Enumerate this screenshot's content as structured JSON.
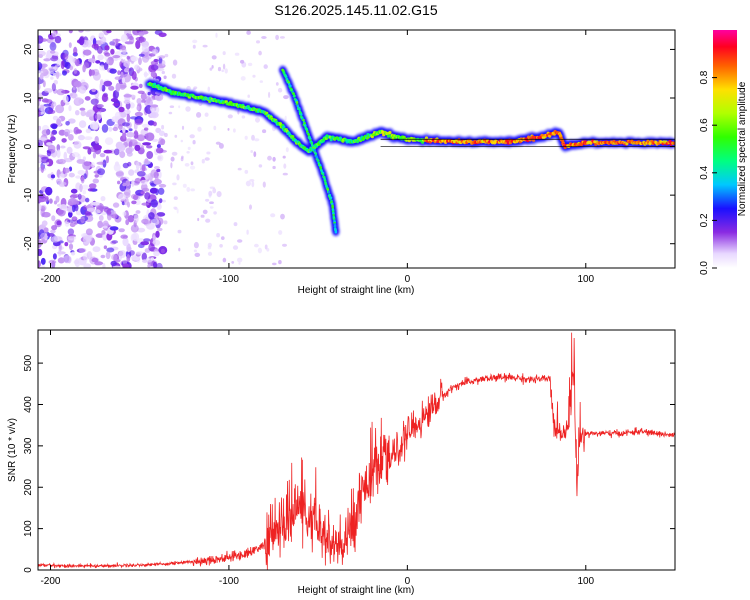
{
  "title": "S126.2025.145.11.02.G15",
  "chart_data": [
    {
      "type": "heatmap",
      "xlabel": "Height of straight line (km)",
      "ylabel": "Frequency (Hz)",
      "xlim": [
        -207,
        150
      ],
      "ylim": [
        -25,
        24
      ],
      "xticks": [
        -200,
        -100,
        0,
        100
      ],
      "yticks": [
        -20,
        -10,
        0,
        10,
        20
      ],
      "colorbar": {
        "label": "Normalized spectral amplitude",
        "range": [
          0,
          1
        ],
        "ticks": [
          0.0,
          0.2,
          0.4,
          0.6,
          0.8
        ]
      },
      "ridge": [
        [
          -145,
          13
        ],
        [
          -130,
          11
        ],
        [
          -115,
          10
        ],
        [
          -100,
          9
        ],
        [
          -90,
          8
        ],
        [
          -80,
          7
        ],
        [
          -70,
          4
        ],
        [
          -62,
          1
        ],
        [
          -55,
          -1
        ],
        [
          -45,
          2
        ],
        [
          -30,
          1
        ],
        [
          -15,
          3
        ],
        [
          0,
          1.5
        ],
        [
          30,
          1
        ],
        [
          60,
          1
        ],
        [
          75,
          2
        ],
        [
          85,
          3
        ],
        [
          88,
          0
        ],
        [
          100,
          0.8
        ],
        [
          150,
          0.8
        ]
      ],
      "secondary_ridge": [
        [
          -70,
          16
        ],
        [
          -63,
          10
        ],
        [
          -55,
          2
        ],
        [
          -47,
          -6
        ],
        [
          -42,
          -12
        ],
        [
          -40,
          -18
        ]
      ]
    },
    {
      "type": "line",
      "xlabel": "Height of straight line (km)",
      "ylabel": "SNR (10 * v/v)",
      "xlim": [
        -207,
        150
      ],
      "ylim": [
        0,
        580
      ],
      "xticks": [
        -200,
        -100,
        0,
        100
      ],
      "yticks": [
        0,
        100,
        200,
        300,
        400,
        500
      ],
      "series": [
        {
          "color": "#ee2222",
          "x": [
            -207,
            -190,
            -170,
            -150,
            -135,
            -120,
            -110,
            -100,
            -90,
            -80,
            -75,
            -70,
            -65,
            -60,
            -55,
            -50,
            -45,
            -40,
            -35,
            -30,
            -25,
            -20,
            -15,
            -10,
            -5,
            0,
            5,
            10,
            15,
            20,
            25,
            30,
            40,
            50,
            60,
            70,
            80,
            82,
            85,
            88,
            90,
            93,
            95,
            97,
            100,
            110,
            120,
            130,
            140,
            150
          ],
          "y": [
            12,
            10,
            10,
            12,
            15,
            20,
            25,
            30,
            40,
            60,
            90,
            110,
            130,
            160,
            120,
            100,
            70,
            50,
            60,
            120,
            200,
            230,
            250,
            270,
            290,
            330,
            350,
            370,
            400,
            420,
            440,
            450,
            460,
            465,
            465,
            460,
            462,
            350,
            340,
            330,
            350,
            500,
            200,
            320,
            330,
            330,
            330,
            335,
            330,
            325
          ]
        }
      ]
    }
  ]
}
